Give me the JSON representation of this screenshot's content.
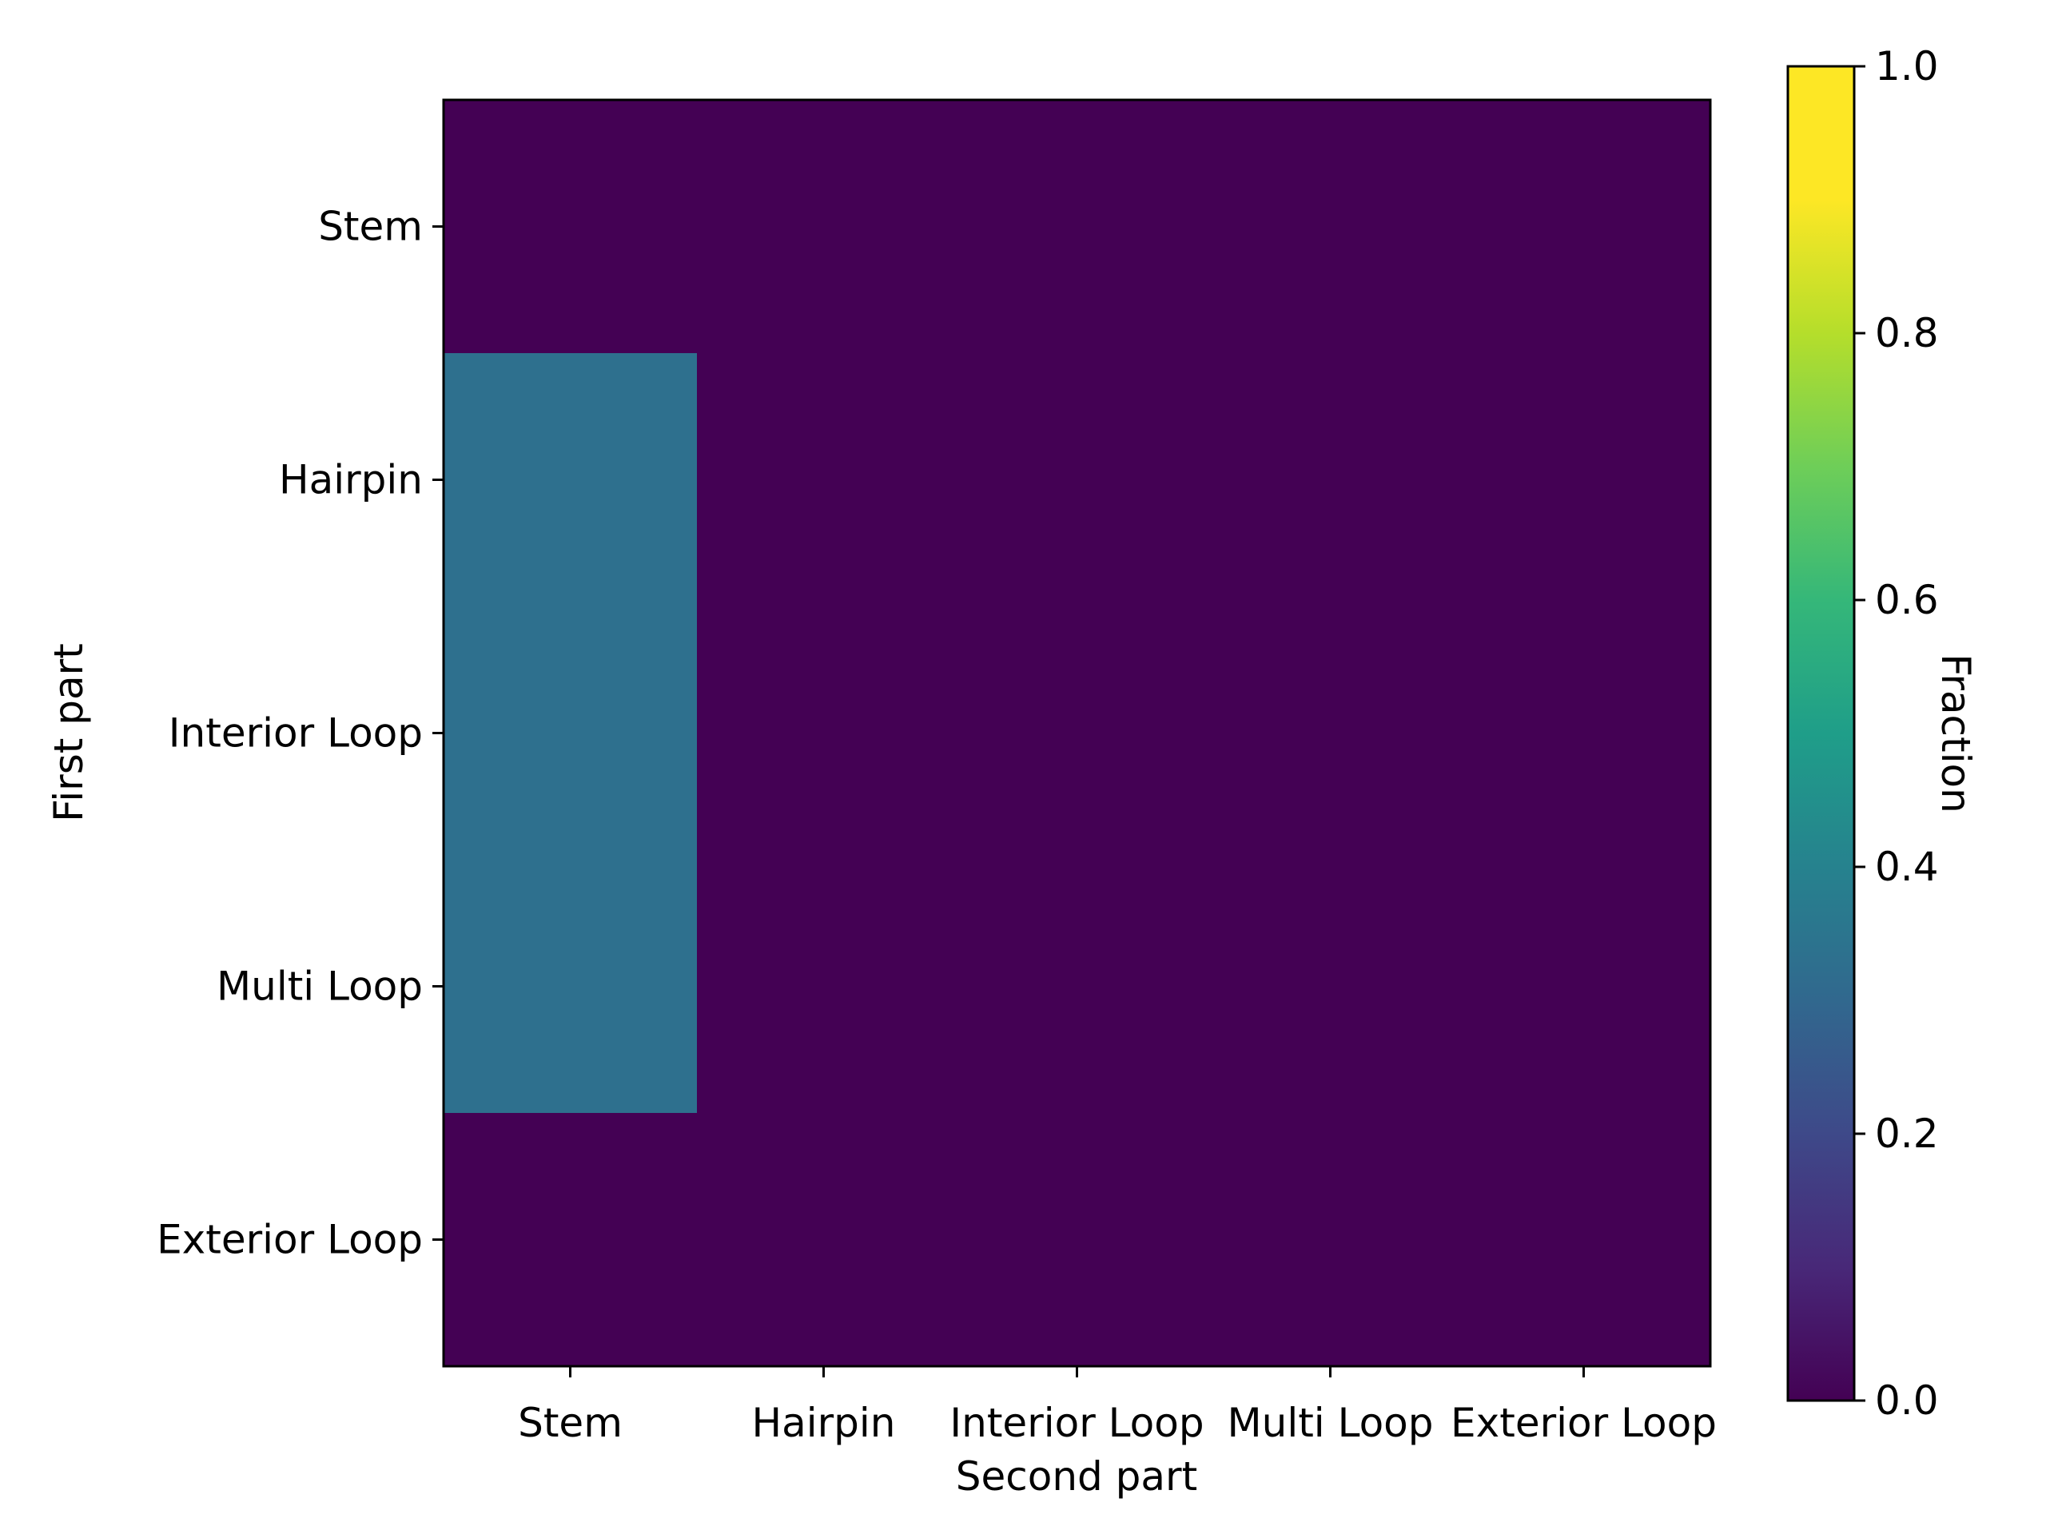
{
  "chart_data": {
    "type": "heatmap",
    "xlabel": "Second part",
    "ylabel": "First part",
    "x_categories": [
      "Stem",
      "Hairpin",
      "Interior Loop",
      "Multi Loop",
      "Exterior Loop"
    ],
    "y_categories": [
      "Stem",
      "Hairpin",
      "Interior Loop",
      "Multi Loop",
      "Exterior Loop"
    ],
    "values": [
      [
        0.0,
        0.0,
        0.0,
        0.0,
        0.0
      ],
      [
        0.33,
        0.0,
        0.0,
        0.0,
        0.0
      ],
      [
        0.33,
        0.0,
        0.0,
        0.0,
        0.0
      ],
      [
        0.33,
        0.0,
        0.0,
        0.0,
        0.0
      ],
      [
        0.0,
        0.0,
        0.0,
        0.0,
        0.0
      ]
    ],
    "colorbar": {
      "label": "Fraction",
      "range": [
        0.0,
        1.0
      ],
      "ticks": [
        "0.0",
        "0.2",
        "0.4",
        "0.6",
        "0.8",
        "1.0"
      ],
      "colormap": "viridis"
    }
  }
}
